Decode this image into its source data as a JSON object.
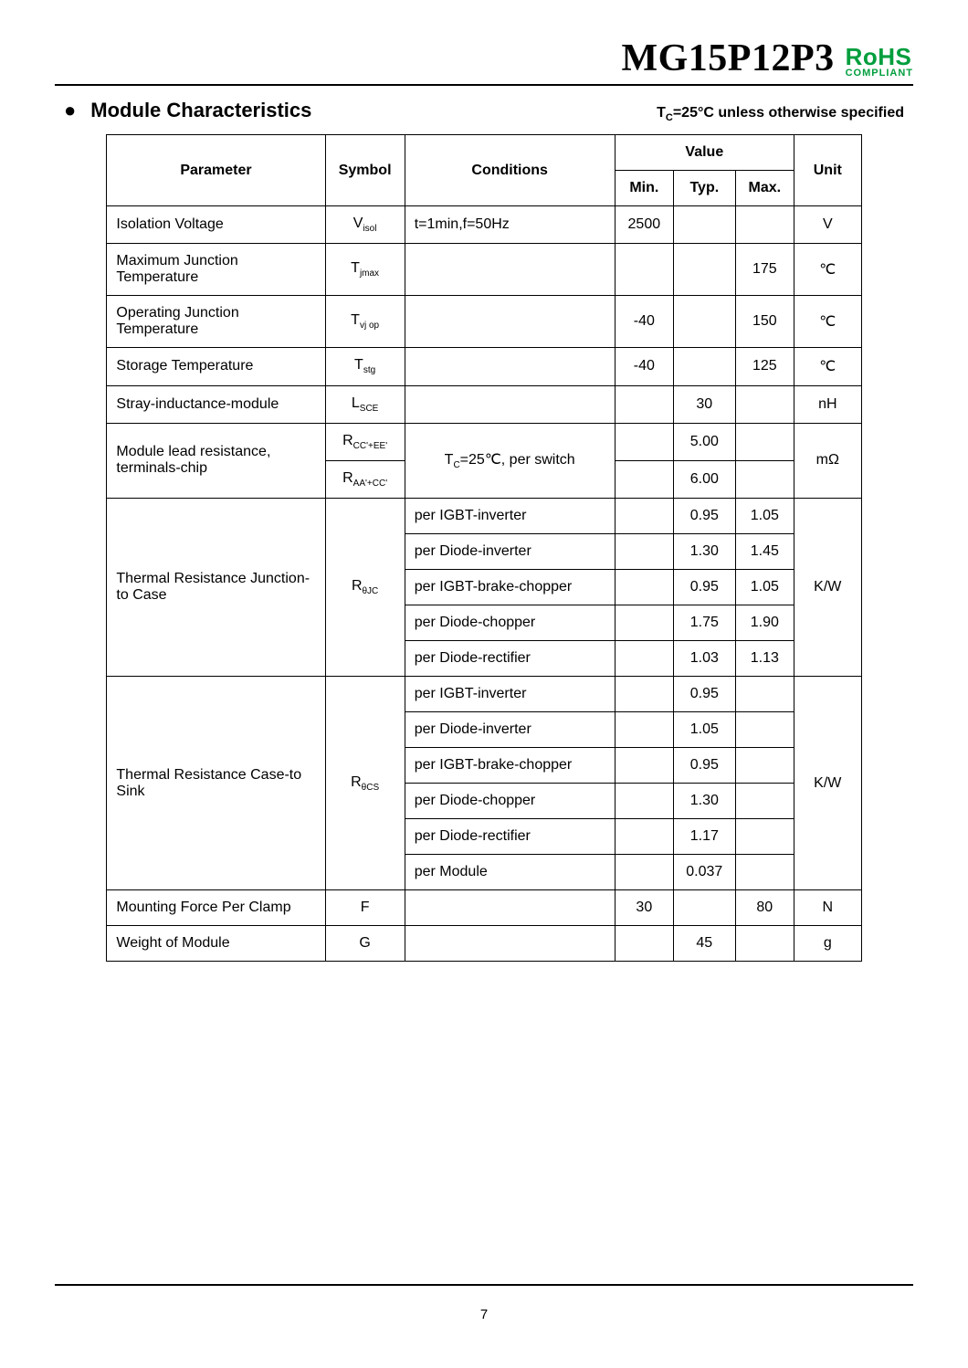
{
  "header": {
    "part_number": "MG15P12P3",
    "rohs": "RoHS",
    "compliant": "COMPLIANT"
  },
  "section": {
    "title": "Module Characteristics",
    "note_prefix": "T",
    "note_sub": "C",
    "note_rest": "=25°C unless otherwise specified"
  },
  "table": {
    "head": {
      "parameter": "Parameter",
      "symbol": "Symbol",
      "conditions": "Conditions",
      "value": "Value",
      "min": "Min.",
      "typ": "Typ.",
      "max": "Max.",
      "unit": "Unit"
    },
    "rows": {
      "r1": {
        "param": "Isolation Voltage",
        "sym": "V",
        "sym_sub": "isol",
        "cond": "t=1min,f=50Hz",
        "min": "2500",
        "typ": "",
        "max": "",
        "unit": "V"
      },
      "r2": {
        "param": "Maximum Junction Temperature",
        "sym": "T",
        "sym_sub": "jmax",
        "cond": "",
        "min": "",
        "typ": "",
        "max": "175",
        "unit": "℃"
      },
      "r3": {
        "param": "Operating Junction Temperature",
        "sym": "T",
        "sym_sub": "vj op",
        "cond": "",
        "min": "-40",
        "typ": "",
        "max": "150",
        "unit": "℃"
      },
      "r4": {
        "param": "Storage Temperature",
        "sym": "T",
        "sym_sub": "stg",
        "cond": "",
        "min": "-40",
        "typ": "",
        "max": "125",
        "unit": "℃"
      },
      "r5": {
        "param": "Stray-inductance-module",
        "sym": "L",
        "sym_sub": "SCE",
        "cond": "",
        "min": "",
        "typ": "30",
        "max": "",
        "unit": "nH"
      },
      "r6": {
        "param": "Module lead resistance, terminals-chip",
        "sym1": "R",
        "sym1_sub": "CC'+EE'",
        "sym2": "R",
        "sym2_sub": "AA'+CC'",
        "cond": "T",
        "cond_sub": "C",
        "cond_rest": "=25℃, per switch",
        "typ1": "5.00",
        "typ2": "6.00",
        "unit": "mΩ"
      },
      "r7": {
        "param": "Thermal Resistance Junction-to Case",
        "sym": "R",
        "sym_sub": "θJC",
        "c1": "per IGBT-inverter",
        "t1": "0.95",
        "m1": "1.05",
        "c2": "per Diode-inverter",
        "t2": "1.30",
        "m2": "1.45",
        "c3": "per IGBT-brake-chopper",
        "t3": "0.95",
        "m3": "1.05",
        "c4": "per Diode-chopper",
        "t4": "1.75",
        "m4": "1.90",
        "c5": "per Diode-rectifier",
        "t5": "1.03",
        "m5": "1.13",
        "unit": "K/W"
      },
      "r8": {
        "param": "Thermal Resistance Case-to Sink",
        "sym": "R",
        "sym_sub": "θCS",
        "c1": "per IGBT-inverter",
        "t1": "0.95",
        "c2": "per Diode-inverter",
        "t2": "1.05",
        "c3": "per IGBT-brake-chopper",
        "t3": "0.95",
        "c4": "per Diode-chopper",
        "t4": "1.30",
        "c5": "per Diode-rectifier",
        "t5": "1.17",
        "c6": "per Module",
        "t6": "0.037",
        "unit": "K/W"
      },
      "r9": {
        "param": "Mounting Force Per Clamp",
        "sym": "F",
        "cond": "",
        "min": "30",
        "typ": "",
        "max": "80",
        "unit": "N"
      },
      "r10": {
        "param": "Weight of Module",
        "sym": "G",
        "cond": "",
        "min": "",
        "typ": "45",
        "max": "",
        "unit": "g"
      }
    }
  },
  "page_number": "7"
}
